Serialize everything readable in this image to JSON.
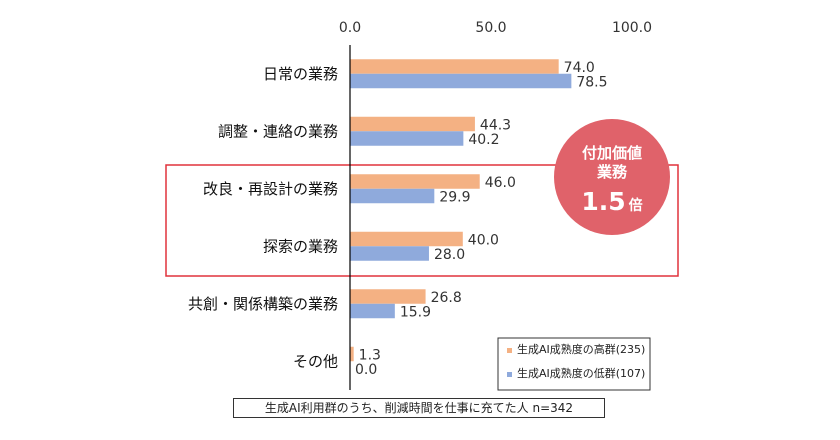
{
  "chart_data": {
    "type": "bar",
    "orientation": "horizontal",
    "categories": [
      "日常の業務",
      "調整・連絡の業務",
      "改良・再設計の業務",
      "探索の業務",
      "共創・関係構築の業務",
      "その他"
    ],
    "series": [
      {
        "name": "生成AI成熟度の高群(235)",
        "color": "#f4b183",
        "values": [
          74.0,
          44.3,
          46.0,
          40.0,
          26.8,
          1.3
        ]
      },
      {
        "name": "生成AI成熟度の低群(107)",
        "color": "#8faadc",
        "values": [
          78.5,
          40.2,
          29.9,
          28.0,
          15.9,
          0.0
        ]
      }
    ],
    "x_ticks": [
      "0.0",
      "50.0",
      "100.0"
    ],
    "xlim": [
      0,
      100
    ],
    "legend_position": "bottom-right",
    "highlight_categories": [
      "改良・再設計の業務",
      "探索の業務"
    ],
    "highlight_color": "#e0323c",
    "badge": {
      "line1": "付加価値",
      "line2": "業務",
      "number": "1.5",
      "unit": "倍",
      "color": "#e0626a"
    }
  },
  "footnote": "生成AI利用群のうち、削減時間を仕事に充てた人 n=342"
}
